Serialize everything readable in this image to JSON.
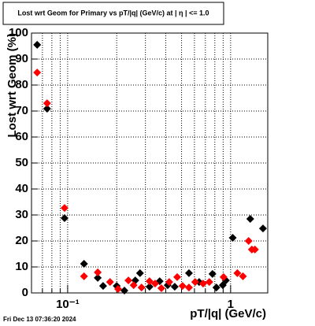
{
  "chart_data": {
    "type": "scatter",
    "title": "Lost wrt Geom for Primary vs pT/|q| (GeV/c) at |  η  | <= 1.0",
    "x_label": "pT/|q| (GeV/c)",
    "y_label": "Lost wrt Geom (%)",
    "footer": "Fri Dec 13 07:36:20 2024",
    "log_x": true,
    "grid": true,
    "xlim": [
      0.06,
      1.69
    ],
    "ylim": [
      0,
      100
    ],
    "xticks": [
      {
        "value": 0.1,
        "label": "10⁻¹"
      },
      1
    ],
    "xminorticks": [
      0.07,
      0.08,
      0.09,
      0.2,
      0.3,
      0.4,
      0.5,
      0.6,
      0.7,
      0.8,
      0.9
    ],
    "yticks": [
      0,
      10,
      20,
      30,
      40,
      50,
      60,
      70,
      80,
      90,
      100
    ],
    "series": [
      {
        "color": "#000000",
        "x": [
          0.065,
          0.0748,
          0.0957,
          0.126,
          0.153,
          0.165,
          0.2,
          0.223,
          0.26,
          0.278,
          0.318,
          0.367,
          0.411,
          0.454,
          0.555,
          0.641,
          0.774,
          0.818,
          0.895,
          0.935,
          1.03,
          1.32,
          1.58
        ],
        "values": [
          95.5,
          70.9,
          28.8,
          11.2,
          5.8,
          2.7,
          2.7,
          0.9,
          4.8,
          7.6,
          2.4,
          4.5,
          3,
          2.4,
          7.6,
          4.2,
          7.3,
          2.1,
          3,
          4.8,
          21.2,
          28.5,
          24.8
        ]
      },
      {
        "color": "#ff0000",
        "x": [
          0.065,
          0.0748,
          0.0957,
          0.126,
          0.153,
          0.182,
          0.204,
          0.236,
          0.254,
          0.284,
          0.318,
          0.344,
          0.376,
          0.42,
          0.47,
          0.507,
          0.555,
          0.606,
          0.678,
          0.74,
          0.905,
          1.1,
          1.19,
          1.29,
          1.35,
          1.41
        ],
        "values": [
          84.8,
          73,
          32.7,
          6.4,
          7.9,
          4.2,
          1.5,
          4.8,
          3,
          2.1,
          4.5,
          3.6,
          1.8,
          4.2,
          6.1,
          2.7,
          2.1,
          4.2,
          3.6,
          4.2,
          6.1,
          7.6,
          6.4,
          20,
          16.7,
          16.7
        ]
      }
    ]
  }
}
